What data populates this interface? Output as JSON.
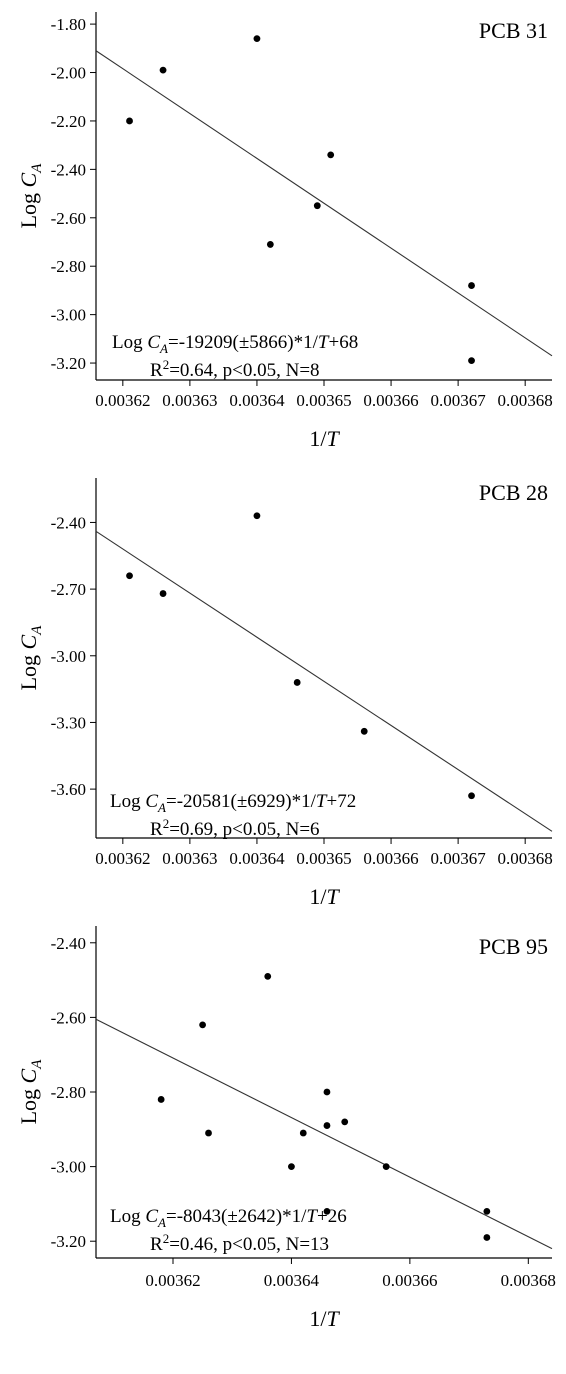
{
  "chart_data": [
    {
      "type": "scatter",
      "title": "PCB 31",
      "xlabel": "1/T",
      "ylabel": "Log C_A",
      "xlim": [
        0.003616,
        0.003684
      ],
      "ylim": [
        -3.27,
        -1.75
      ],
      "x_ticks": [
        "0.00362",
        "0.00363",
        "0.00364",
        "0.00365",
        "0.00366",
        "0.00367",
        "0.00368"
      ],
      "y_ticks": [
        "-1.80",
        "-2.00",
        "-2.20",
        "-2.40",
        "-2.60",
        "-2.80",
        "-3.00",
        "-3.20"
      ],
      "points": [
        {
          "x": 0.003621,
          "y": -2.2
        },
        {
          "x": 0.003626,
          "y": -1.99
        },
        {
          "x": 0.00364,
          "y": -1.86
        },
        {
          "x": 0.003642,
          "y": -2.71
        },
        {
          "x": 0.003649,
          "y": -2.55
        },
        {
          "x": 0.003651,
          "y": -2.34
        },
        {
          "x": 0.003672,
          "y": -2.88
        },
        {
          "x": 0.003672,
          "y": -3.19
        }
      ],
      "fit_line": {
        "x": [
          0.003616,
          0.003684
        ],
        "y": [
          -1.91,
          -3.17
        ]
      },
      "equation": {
        "prefix": "Log ",
        "var": "C",
        "sub": "A",
        "rest": "=-19209(±5866)*1/",
        "t": "T",
        "tail": "+68"
      },
      "stats": {
        "r": "R",
        "sup": "2",
        "rest": "=0.64, p<0.05, N=8"
      }
    },
    {
      "type": "scatter",
      "title": "PCB 28",
      "xlabel": "1/T",
      "ylabel": "Log C_A",
      "xlim": [
        0.003616,
        0.003684
      ],
      "ylim": [
        -3.82,
        -2.2
      ],
      "x_ticks": [
        "0.00362",
        "0.00363",
        "0.00364",
        "0.00365",
        "0.00366",
        "0.00367",
        "0.00368"
      ],
      "y_ticks": [
        "-2.40",
        "-2.70",
        "-3.00",
        "-3.30",
        "-3.60"
      ],
      "points": [
        {
          "x": 0.003621,
          "y": -2.64
        },
        {
          "x": 0.003626,
          "y": -2.72
        },
        {
          "x": 0.00364,
          "y": -2.37
        },
        {
          "x": 0.003646,
          "y": -3.12
        },
        {
          "x": 0.003656,
          "y": -3.34
        },
        {
          "x": 0.003672,
          "y": -3.63
        }
      ],
      "fit_line": {
        "x": [
          0.003616,
          0.003684
        ],
        "y": [
          -2.44,
          -3.79
        ]
      },
      "equation": {
        "prefix": "Log ",
        "var": "C",
        "sub": "A",
        "rest": "=-20581(±6929)*1/",
        "t": "T",
        "tail": "+72"
      },
      "stats": {
        "r": "R",
        "sup": "2",
        "rest": "=0.69, p<0.05, N=6"
      }
    },
    {
      "type": "scatter",
      "title": "PCB 95",
      "xlabel": "1/T",
      "ylabel": "Log C_A",
      "xlim": [
        0.003607,
        0.003684
      ],
      "ylim": [
        -3.245,
        -2.355
      ],
      "x_ticks": [
        "0.00362",
        "0.00364",
        "0.00366",
        "0.00368"
      ],
      "y_ticks": [
        "-2.40",
        "-2.60",
        "-2.80",
        "-3.00",
        "-3.20"
      ],
      "points": [
        {
          "x": 0.003618,
          "y": -2.82
        },
        {
          "x": 0.003625,
          "y": -2.62
        },
        {
          "x": 0.003626,
          "y": -2.91
        },
        {
          "x": 0.003636,
          "y": -2.49
        },
        {
          "x": 0.00364,
          "y": -3.0
        },
        {
          "x": 0.003642,
          "y": -2.91
        },
        {
          "x": 0.003646,
          "y": -2.8
        },
        {
          "x": 0.003646,
          "y": -2.89
        },
        {
          "x": 0.003646,
          "y": -3.12
        },
        {
          "x": 0.003649,
          "y": -2.88
        },
        {
          "x": 0.003656,
          "y": -3.0
        },
        {
          "x": 0.003673,
          "y": -3.12
        },
        {
          "x": 0.003673,
          "y": -3.19
        }
      ],
      "fit_line": {
        "x": [
          0.003607,
          0.003684
        ],
        "y": [
          -2.605,
          -3.22
        ]
      },
      "equation": {
        "prefix": "Log ",
        "var": "C",
        "sub": "A",
        "rest": "=-8043(±2642)*1/",
        "t": "T",
        "tail": "+26"
      },
      "stats": {
        "r": "R",
        "sup": "2",
        "rest": "=0.46, p<0.05, N=13"
      }
    }
  ]
}
